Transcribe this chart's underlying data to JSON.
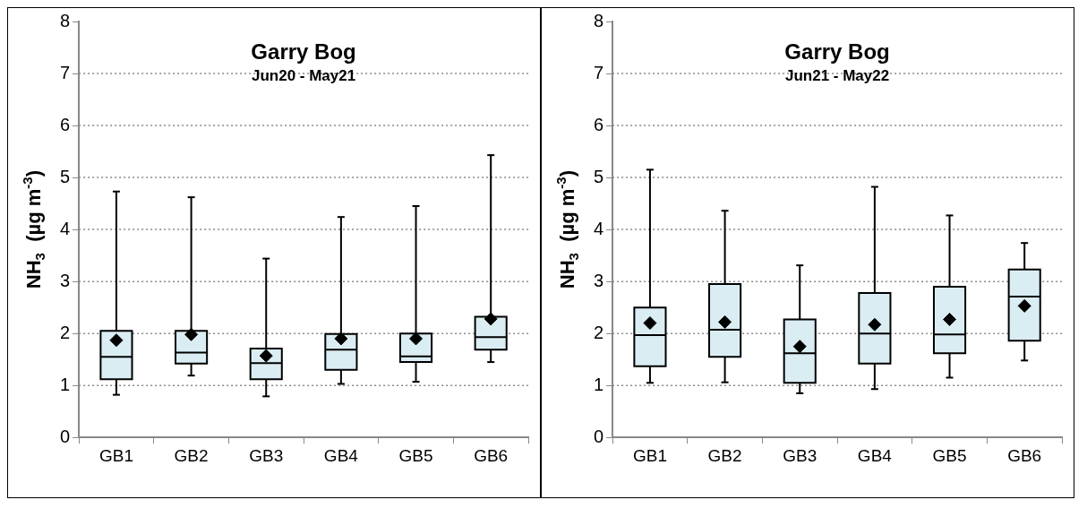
{
  "chart_data": [
    {
      "type": "box",
      "title": "Garry Bog",
      "subtitle": "Jun20 - May21",
      "ylabel": "NH$_{3}$  (µg m$^{-3}$)",
      "categories": [
        "GB1",
        "GB2",
        "GB3",
        "GB4",
        "GB5",
        "GB6"
      ],
      "color": "#daedf3",
      "marker": "diamond",
      "ylim": [
        0,
        8
      ],
      "yticks": [
        0,
        1,
        2,
        3,
        4,
        5,
        6,
        7,
        8
      ],
      "grid": "y",
      "boxes": [
        {
          "low": 0.82,
          "q1": 1.12,
          "median": 1.55,
          "q3": 2.05,
          "high": 4.73,
          "mean": 1.87
        },
        {
          "low": 1.19,
          "q1": 1.42,
          "median": 1.63,
          "q3": 2.05,
          "high": 4.62,
          "mean": 1.98
        },
        {
          "low": 0.79,
          "q1": 1.12,
          "median": 1.43,
          "q3": 1.71,
          "high": 3.44,
          "mean": 1.57
        },
        {
          "low": 1.03,
          "q1": 1.3,
          "median": 1.69,
          "q3": 1.99,
          "high": 4.24,
          "mean": 1.9
        },
        {
          "low": 1.07,
          "q1": 1.45,
          "median": 1.56,
          "q3": 2.0,
          "high": 4.45,
          "mean": 1.9
        },
        {
          "low": 1.45,
          "q1": 1.69,
          "median": 1.93,
          "q3": 2.32,
          "high": 5.43,
          "mean": 2.28
        }
      ]
    },
    {
      "type": "box",
      "title": "Garry Bog",
      "subtitle": "Jun21 - May22",
      "ylabel": "NH$_{3}$  (µg m$^{-3}$)",
      "categories": [
        "GB1",
        "GB2",
        "GB3",
        "GB4",
        "GB5",
        "GB6"
      ],
      "color": "#daedf3",
      "marker": "diamond",
      "ylim": [
        0,
        8
      ],
      "yticks": [
        0,
        1,
        2,
        3,
        4,
        5,
        6,
        7,
        8
      ],
      "grid": "y",
      "boxes": [
        {
          "low": 1.05,
          "q1": 1.37,
          "median": 1.97,
          "q3": 2.5,
          "high": 5.15,
          "mean": 2.2
        },
        {
          "low": 1.06,
          "q1": 1.55,
          "median": 2.07,
          "q3": 2.95,
          "high": 4.36,
          "mean": 2.22
        },
        {
          "low": 0.85,
          "q1": 1.05,
          "median": 1.62,
          "q3": 2.27,
          "high": 3.31,
          "mean": 1.75
        },
        {
          "low": 0.93,
          "q1": 1.42,
          "median": 2.0,
          "q3": 2.78,
          "high": 4.82,
          "mean": 2.17
        },
        {
          "low": 1.15,
          "q1": 1.62,
          "median": 1.98,
          "q3": 2.9,
          "high": 4.27,
          "mean": 2.27
        },
        {
          "low": 1.48,
          "q1": 1.86,
          "median": 2.71,
          "q3": 3.23,
          "high": 3.74,
          "mean": 2.53
        }
      ]
    }
  ]
}
